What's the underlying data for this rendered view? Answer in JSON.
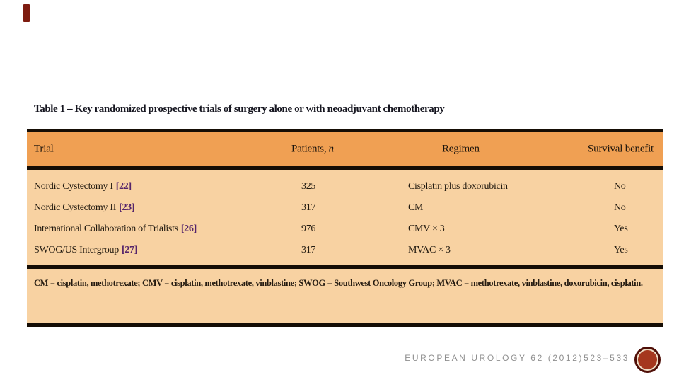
{
  "slide": {
    "footer_citation": "EUROPEAN UROLOGY 62 (2012)523–533"
  },
  "table": {
    "title": "Table 1 – Key randomized prospective trials of surgery alone or with neoadjuvant chemotherapy",
    "columns": [
      {
        "label": "Trial"
      },
      {
        "label": "Patients,",
        "italic_suffix": "n"
      },
      {
        "label": "Regimen"
      },
      {
        "label": "Survival benefit"
      }
    ],
    "rows": [
      {
        "trial": "Nordic Cystectomy I",
        "citation": "[22]",
        "patients": "325",
        "regimen": "Cisplatin plus doxorubicin",
        "survival_benefit": "No"
      },
      {
        "trial": "Nordic Cystectomy II",
        "citation": "[23]",
        "patients": "317",
        "regimen": "CM",
        "survival_benefit": "No"
      },
      {
        "trial": "International Collaboration of Trialists",
        "citation": "[26]",
        "patients": "976",
        "regimen": "CMV × 3",
        "survival_benefit": "Yes"
      },
      {
        "trial": "SWOG/US Intergroup",
        "citation": "[27]",
        "patients": "317",
        "regimen": "MVAC × 3",
        "survival_benefit": "Yes"
      }
    ],
    "footnote": "CM = cisplatin, methotrexate; CMV = cisplatin, methotrexate, vinblastine; SWOG = Southwest Oncology Group; MVAC = methotrexate, vinblastine, doxorubicin, cisplatin.",
    "colors": {
      "header_bg": "#f0a053",
      "body_bg": "#f8d2a2",
      "border": "#150d05",
      "citation_text": "#55246a",
      "accent_red": "#7e1c10",
      "stamp_fill": "#a5371e",
      "stamp_ring": "#4f0f08",
      "footer_text": "#8f8f8f"
    }
  }
}
